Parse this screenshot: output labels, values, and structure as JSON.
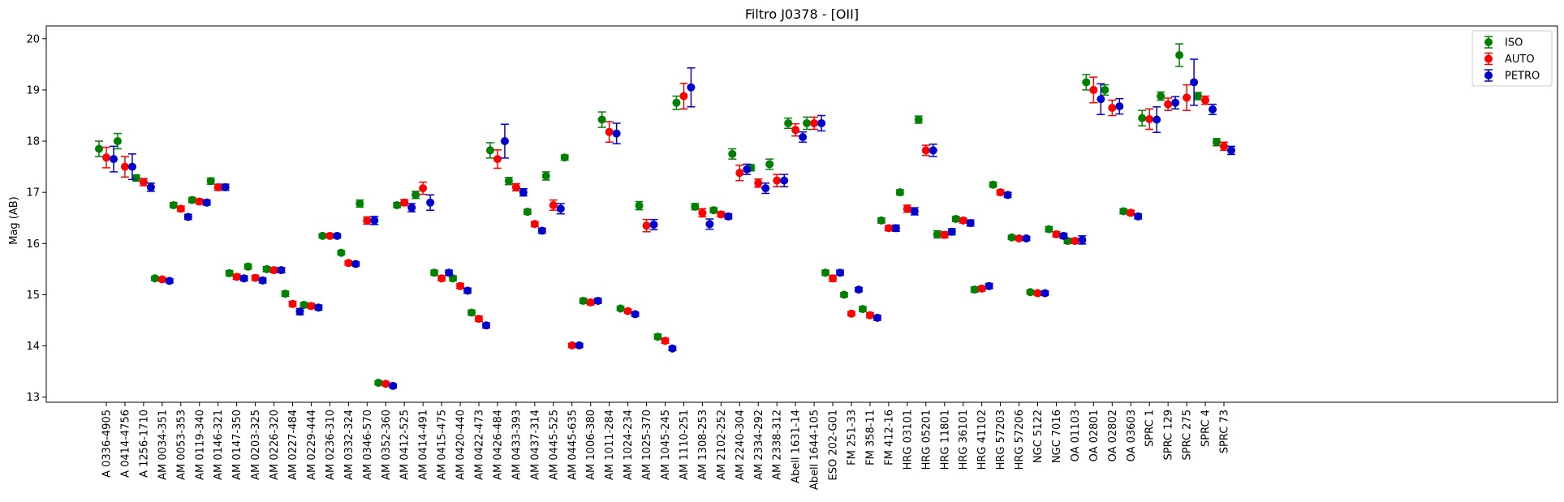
{
  "chart_data": {
    "type": "scatter",
    "title": "Filtro J0378 - [OII]",
    "xlabel": "",
    "ylabel": "Mag (AB)",
    "ylim": [
      12.9,
      20.25
    ],
    "yticks": [
      13,
      14,
      15,
      16,
      17,
      18,
      19,
      20
    ],
    "grid": false,
    "legend_position": "top-right",
    "categories": [
      "A 0336-4905",
      "A 0414-4756",
      "A 1256-1710",
      "AM 0034-351",
      "AM 0053-353",
      "AM 0119-340",
      "AM 0146-321",
      "AM 0147-350",
      "AM 0203-325",
      "AM 0226-320",
      "AM 0227-484",
      "AM 0229-444",
      "AM 0236-310",
      "AM 0332-324",
      "AM 0346-570",
      "AM 0352-360",
      "AM 0412-525",
      "AM 0414-491",
      "AM 0415-475",
      "AM 0420-440",
      "AM 0422-473",
      "AM 0426-484",
      "AM 0433-393",
      "AM 0437-314",
      "AM 0445-525",
      "AM 0445-635",
      "AM 1006-380",
      "AM 1011-284",
      "AM 1024-234",
      "AM 1025-370",
      "AM 1045-245",
      "AM 1110-251",
      "AM 1308-253",
      "AM 2102-252",
      "AM 2240-304",
      "AM 2334-292",
      "AM 2338-312",
      "Abell 1631-14",
      "Abell 1644-105",
      "ESO 202-G01",
      "FM 251-33",
      "FM 358-11",
      "FM 412-16",
      "HRG 03101",
      "HRG 05201",
      "HRG 11801",
      "HRG 36101",
      "HRG 41102",
      "HRG 57203",
      "HRG 57206",
      "NGC 5122",
      "NGC 7016",
      "OA 01103",
      "OA 02801",
      "OA 02802",
      "OA 03603",
      "SPRC 1",
      "SPRC 129",
      "SPRC 275",
      "SPRC 4",
      "SPRC 73"
    ],
    "series": [
      {
        "name": "ISO",
        "color": "#008000",
        "values": [
          17.85,
          18.0,
          17.28,
          15.32,
          16.75,
          16.85,
          17.22,
          15.42,
          15.55,
          15.5,
          15.02,
          14.8,
          16.15,
          15.82,
          16.78,
          13.28,
          16.75,
          16.95,
          15.43,
          15.32,
          14.65,
          17.82,
          17.22,
          16.62,
          17.32,
          17.68,
          14.88,
          18.42,
          14.73,
          16.74,
          14.18,
          18.75,
          16.72,
          16.65,
          17.75,
          17.48,
          17.55,
          18.35,
          18.35,
          15.43,
          15.0,
          14.72,
          16.45,
          17.0,
          18.42,
          16.18,
          16.48,
          15.1,
          17.15,
          16.12,
          15.05,
          16.28,
          16.05,
          19.15,
          19.0,
          16.63,
          18.45,
          18.88,
          19.68,
          18.88,
          17.98
        ],
        "errors": [
          0.15,
          0.15,
          0.06,
          0.04,
          0.05,
          0.05,
          0.06,
          0.05,
          0.05,
          0.05,
          0.05,
          0.05,
          0.04,
          0.04,
          0.07,
          0.04,
          0.05,
          0.07,
          0.05,
          0.05,
          0.05,
          0.15,
          0.07,
          0.05,
          0.08,
          0.05,
          0.05,
          0.15,
          0.04,
          0.08,
          0.05,
          0.13,
          0.06,
          0.05,
          0.1,
          0.06,
          0.1,
          0.1,
          0.12,
          0.05,
          0.04,
          0.05,
          0.05,
          0.05,
          0.07,
          0.07,
          0.05,
          0.05,
          0.05,
          0.04,
          0.04,
          0.05,
          0.05,
          0.15,
          0.1,
          0.05,
          0.15,
          0.08,
          0.22,
          0.07,
          0.07
        ]
      },
      {
        "name": "AUTO",
        "color": "#ff0000",
        "values": [
          17.68,
          17.5,
          17.2,
          15.3,
          16.68,
          16.82,
          17.1,
          15.35,
          15.33,
          15.48,
          14.82,
          14.78,
          16.15,
          15.62,
          16.45,
          13.26,
          16.8,
          17.08,
          15.32,
          15.17,
          14.53,
          17.65,
          17.1,
          16.38,
          16.75,
          14.01,
          14.85,
          18.18,
          14.68,
          16.35,
          14.1,
          18.88,
          16.6,
          16.57,
          17.38,
          17.18,
          17.23,
          18.22,
          18.35,
          15.32,
          14.63,
          14.6,
          16.3,
          16.68,
          17.82,
          16.17,
          16.45,
          15.12,
          17.0,
          16.1,
          15.03,
          16.18,
          16.05,
          19.0,
          18.65,
          16.6,
          18.43,
          18.72,
          18.85,
          18.8,
          17.9
        ],
        "errors": [
          0.2,
          0.2,
          0.07,
          0.04,
          0.05,
          0.05,
          0.06,
          0.05,
          0.05,
          0.05,
          0.05,
          0.05,
          0.04,
          0.04,
          0.07,
          0.04,
          0.06,
          0.12,
          0.05,
          0.05,
          0.05,
          0.18,
          0.07,
          0.05,
          0.1,
          0.04,
          0.05,
          0.2,
          0.04,
          0.12,
          0.05,
          0.25,
          0.08,
          0.05,
          0.15,
          0.08,
          0.12,
          0.12,
          0.12,
          0.06,
          0.04,
          0.05,
          0.05,
          0.07,
          0.1,
          0.06,
          0.05,
          0.05,
          0.05,
          0.04,
          0.04,
          0.05,
          0.05,
          0.25,
          0.15,
          0.05,
          0.2,
          0.12,
          0.25,
          0.08,
          0.08
        ]
      },
      {
        "name": "PETRO",
        "color": "#0000cd",
        "values": [
          17.65,
          17.5,
          17.1,
          15.27,
          16.52,
          16.8,
          17.1,
          15.32,
          15.28,
          15.48,
          14.67,
          14.75,
          16.15,
          15.6,
          16.45,
          13.22,
          16.7,
          16.8,
          15.43,
          15.08,
          14.4,
          18.0,
          17.0,
          16.25,
          16.68,
          14.01,
          14.88,
          18.15,
          14.62,
          16.37,
          13.95,
          19.05,
          16.38,
          16.53,
          17.45,
          17.08,
          17.23,
          18.08,
          18.35,
          15.43,
          15.1,
          14.55,
          16.3,
          16.63,
          17.82,
          16.23,
          16.4,
          15.17,
          16.95,
          16.1,
          15.03,
          16.15,
          16.07,
          18.82,
          18.68,
          16.53,
          18.42,
          18.75,
          19.15,
          18.62,
          17.82
        ],
        "errors": [
          0.25,
          0.25,
          0.08,
          0.04,
          0.05,
          0.05,
          0.06,
          0.05,
          0.05,
          0.05,
          0.06,
          0.05,
          0.04,
          0.04,
          0.08,
          0.04,
          0.08,
          0.15,
          0.05,
          0.05,
          0.05,
          0.33,
          0.07,
          0.05,
          0.1,
          0.04,
          0.05,
          0.2,
          0.04,
          0.1,
          0.04,
          0.38,
          0.1,
          0.05,
          0.1,
          0.1,
          0.12,
          0.1,
          0.15,
          0.05,
          0.04,
          0.05,
          0.06,
          0.07,
          0.12,
          0.06,
          0.06,
          0.05,
          0.05,
          0.04,
          0.04,
          0.05,
          0.08,
          0.3,
          0.15,
          0.05,
          0.25,
          0.12,
          0.45,
          0.1,
          0.08
        ]
      }
    ]
  }
}
